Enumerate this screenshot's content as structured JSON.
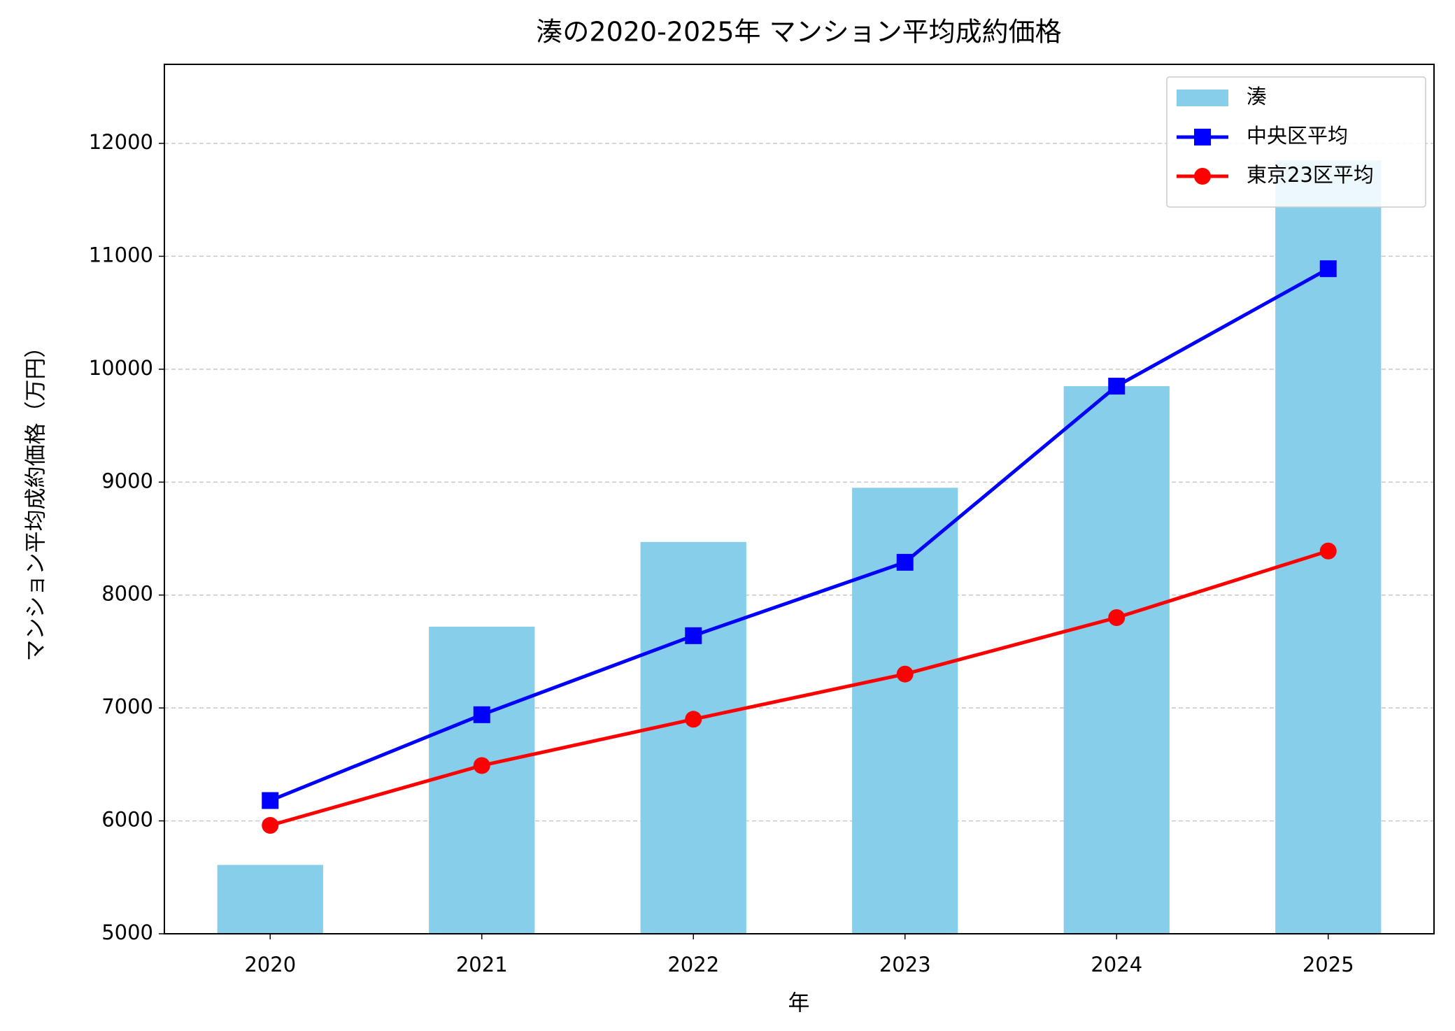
{
  "chart_data": {
    "type": "bar",
    "title": "湊の2020-2025年 マンション平均成約価格",
    "x_label": "年",
    "y_label": "マンション平均成約価格（万円）",
    "categories": [
      "2020",
      "2021",
      "2022",
      "2023",
      "2024",
      "2025"
    ],
    "series": [
      {
        "name": "湊",
        "type": "bar",
        "color": "#87ceeb",
        "values": [
          5610,
          7720,
          8470,
          8950,
          9850,
          11850
        ]
      },
      {
        "name": "中央区平均",
        "type": "line",
        "marker": "square",
        "color": "#0000ff",
        "values": [
          6180,
          6940,
          7640,
          8290,
          9850,
          10890
        ]
      },
      {
        "name": "東京23区平均",
        "type": "line",
        "marker": "circle",
        "color": "#ff0000",
        "values": [
          5960,
          6490,
          6900,
          7300,
          7800,
          8390
        ]
      }
    ],
    "ylim": [
      5000,
      12700
    ],
    "yticks": [
      5000,
      6000,
      7000,
      8000,
      9000,
      10000,
      11000,
      12000
    ],
    "grid": true,
    "legend": "upper right"
  }
}
